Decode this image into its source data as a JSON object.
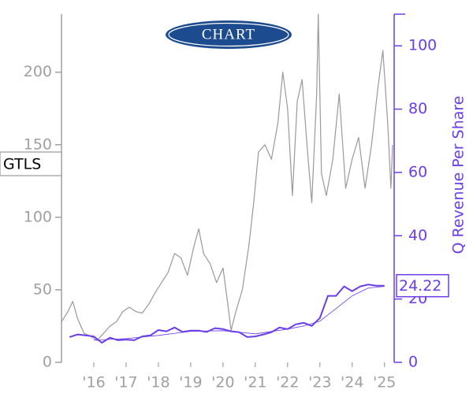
{
  "chart_data": {
    "type": "line",
    "logo": "CHART",
    "ticker": "GTLS",
    "y2_label": "Q Revenue Per Share",
    "end_label": {
      "value": 24.22,
      "label": "24.22"
    },
    "xlim": [
      2015,
      2025.3
    ],
    "xticks": [
      {
        "value": 2016,
        "label": "'16"
      },
      {
        "value": 2017,
        "label": "'17"
      },
      {
        "value": 2018,
        "label": "'18"
      },
      {
        "value": 2019,
        "label": "'19"
      },
      {
        "value": 2020,
        "label": "'20"
      },
      {
        "value": 2021,
        "label": "'21"
      },
      {
        "value": 2022,
        "label": "'22"
      },
      {
        "value": 2023,
        "label": "'23"
      },
      {
        "value": 2024,
        "label": "'24"
      },
      {
        "value": 2025,
        "label": "'25"
      }
    ],
    "ylim": [
      0,
      240
    ],
    "yticks": [
      0,
      50,
      100,
      150,
      200
    ],
    "y2lim": [
      0,
      110
    ],
    "y2ticks": [
      0,
      20,
      40,
      60,
      80,
      100
    ],
    "left_color": "#a0a0a0",
    "right_color": "#6a3de8",
    "series": [
      {
        "color": "#999999",
        "width": 1.2,
        "axis": "y",
        "x": [
          2015.0,
          2015.2,
          2015.35,
          2015.5,
          2015.7,
          2015.9,
          2016.1,
          2016.3,
          2016.5,
          2016.7,
          2016.9,
          2017.1,
          2017.3,
          2017.5,
          2017.7,
          2017.9,
          2018.1,
          2018.3,
          2018.5,
          2018.7,
          2018.9,
          2019.1,
          2019.25,
          2019.4,
          2019.6,
          2019.8,
          2020.0,
          2020.15,
          2020.25,
          2020.4,
          2020.6,
          2020.8,
          2020.95,
          2021.1,
          2021.3,
          2021.5,
          2021.7,
          2021.85,
          2022.0,
          2022.15,
          2022.3,
          2022.45,
          2022.6,
          2022.75,
          2022.9,
          2022.95,
          2023.05,
          2023.2,
          2023.4,
          2023.6,
          2023.8,
          2024.0,
          2024.2,
          2024.4,
          2024.6,
          2024.8,
          2024.95,
          2025.1,
          2025.2,
          2025.25
        ],
        "values": [
          28,
          35,
          42,
          30,
          20,
          18,
          15,
          20,
          25,
          28,
          35,
          38,
          35,
          34,
          40,
          48,
          55,
          62,
          75,
          72,
          60,
          80,
          92,
          75,
          68,
          55,
          65,
          40,
          22,
          35,
          50,
          80,
          110,
          145,
          150,
          140,
          165,
          200,
          175,
          115,
          180,
          195,
          150,
          110,
          185,
          240,
          130,
          115,
          140,
          185,
          120,
          140,
          155,
          120,
          150,
          190,
          215,
          165,
          120,
          150
        ]
      },
      {
        "color": "#6a3de8",
        "width": 2,
        "axis": "y2",
        "x": [
          2015.25,
          2015.5,
          2015.75,
          2016.0,
          2016.25,
          2016.5,
          2016.75,
          2017.0,
          2017.25,
          2017.5,
          2017.75,
          2018.0,
          2018.25,
          2018.5,
          2018.75,
          2019.0,
          2019.25,
          2019.5,
          2019.75,
          2020.0,
          2020.25,
          2020.5,
          2020.75,
          2021.0,
          2021.25,
          2021.5,
          2021.75,
          2022.0,
          2022.25,
          2022.5,
          2022.75,
          2023.0,
          2023.25,
          2023.5,
          2023.75,
          2024.0,
          2024.25,
          2024.5,
          2024.75,
          2025.0
        ],
        "values": [
          8,
          8.8,
          8.5,
          8.2,
          6.2,
          7.8,
          7,
          7.2,
          7.0,
          8.2,
          8.5,
          10.2,
          9.8,
          11,
          9.6,
          10,
          10,
          9.6,
          10.8,
          10.5,
          9.8,
          9.5,
          8,
          8.2,
          8.8,
          9.5,
          11,
          10.5,
          12,
          12.5,
          11.5,
          14,
          21,
          21,
          24,
          22.5,
          24,
          24.6,
          24.2,
          24.22
        ]
      },
      {
        "color": "#6a3de8",
        "width": 0.8,
        "axis": "y2",
        "x": [
          2016,
          2017,
          2018,
          2019,
          2020,
          2021,
          2022,
          2022.5,
          2023,
          2023.5,
          2024,
          2024.5,
          2025
        ],
        "values": [
          7,
          7.5,
          8.5,
          9.8,
          10,
          9,
          10.5,
          11.5,
          13,
          17,
          21,
          23.5,
          24
        ]
      }
    ]
  }
}
